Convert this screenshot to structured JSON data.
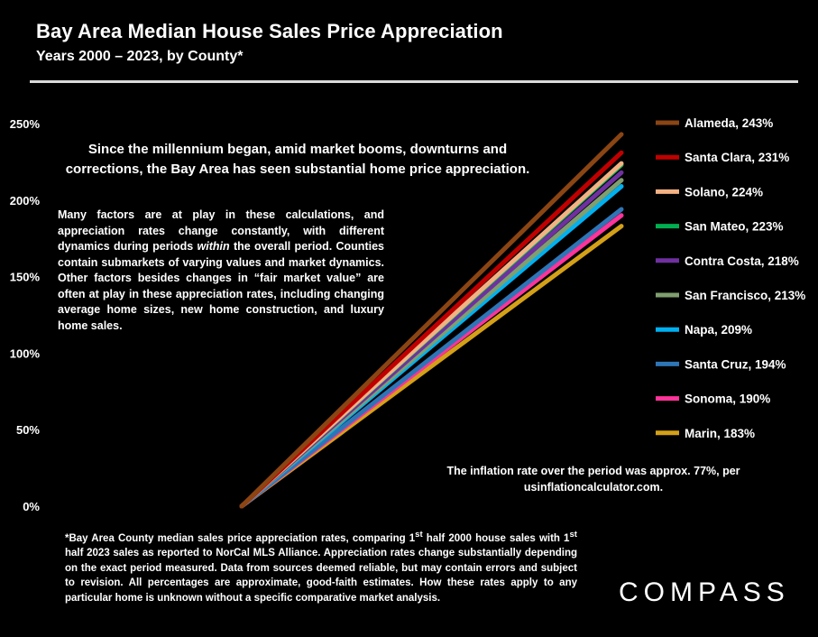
{
  "header": {
    "title": "Bay Area Median House Sales Price Appreciation",
    "subtitle": "Years 2000 – 2023, by County*"
  },
  "callout": "Since the millennium began, amid market booms, downturns and corrections, the Bay Area has seen substantial home price appreciation.",
  "note_parts": {
    "before": "Many factors are at play in these calculations, and appreciation rates change constantly, with different dynamics during periods ",
    "emphasis": "within",
    "after": " the overall period. Counties contain submarkets of varying values and market dynamics. Other factors besides changes in “fair market value” are often at play in these appreciation rates, including  changing average home sizes, new home construction, and luxury home sales."
  },
  "inflation_note": "The inflation rate over the period was approx. 77%, per usinflationcalculator.com.",
  "footnote_parts": {
    "a": "*Bay Area County median sales price appreciation rates, comparing 1",
    "sup1": "st",
    "b": " half 2000 house sales with 1",
    "sup2": "st",
    "c": " half 2023 sales as reported to NorCal MLS Alliance. Appreciation rates change substantially depending on the exact period measured. Data from sources deemed reliable, but may contain errors and subject to revision. All percentages are approximate, good-faith estimates. How these rates apply to any particular home is unknown without a specific comparative market analysis."
  },
  "logo": "COMPASS",
  "chart_data": {
    "type": "line",
    "x": [
      "2000",
      "2023"
    ],
    "ylim": [
      0,
      250
    ],
    "yticks": [
      0,
      50,
      100,
      150,
      200,
      250
    ],
    "ytick_labels": [
      "0%",
      "50%",
      "100%",
      "150%",
      "200%",
      "250%"
    ],
    "grid": false,
    "legend": "right",
    "series": [
      {
        "name": "Alameda, 243%",
        "values": [
          0,
          243
        ],
        "color": "#8B4513"
      },
      {
        "name": "Santa Clara, 231%",
        "values": [
          0,
          231
        ],
        "color": "#C00000"
      },
      {
        "name": "Solano, 224%",
        "values": [
          0,
          224
        ],
        "color": "#F4B183"
      },
      {
        "name": "San Mateo, 223%",
        "values": [
          0,
          223
        ],
        "color": "#00B050"
      },
      {
        "name": "Contra Costa, 218%",
        "values": [
          0,
          218
        ],
        "color": "#7030A0"
      },
      {
        "name": "San Francisco, 213%",
        "values": [
          0,
          213
        ],
        "color": "#7F9F6F"
      },
      {
        "name": "Napa, 209%",
        "values": [
          0,
          209
        ],
        "color": "#00B0F0"
      },
      {
        "name": "Santa Cruz, 194%",
        "values": [
          0,
          194
        ],
        "color": "#2E75B6"
      },
      {
        "name": "Sonoma, 190%",
        "values": [
          0,
          190
        ],
        "color": "#FF3399"
      },
      {
        "name": "Marin, 183%",
        "values": [
          0,
          183
        ],
        "color": "#D4A017"
      }
    ]
  }
}
